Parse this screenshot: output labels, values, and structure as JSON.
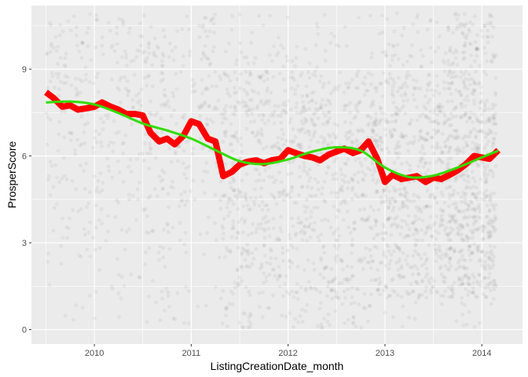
{
  "chart_data": {
    "type": "scatter",
    "xlabel": "ListingCreationDate_month",
    "ylabel": "ProsperScore",
    "xlim": [
      2009.35,
      2014.42
    ],
    "ylim": [
      -0.5,
      11.2
    ],
    "x_ticks": [
      2010,
      2011,
      2012,
      2013,
      2014
    ],
    "x_tick_labels": [
      "2010",
      "2011",
      "2012",
      "2013",
      "2014"
    ],
    "y_ticks": [
      0,
      3,
      6,
      9
    ],
    "y_tick_labels": [
      "0",
      "3",
      "6",
      "9"
    ],
    "grid": true,
    "legend": "none",
    "colors": {
      "panel": "#ebebeb",
      "grid": "#ffffff",
      "points": "#000000",
      "mean_line": "#ff0000",
      "smooth_line": "#33dd00"
    },
    "points_density": {
      "description_scores": [
        1,
        2,
        3,
        4,
        5,
        6,
        7,
        8,
        9,
        10,
        11
      ],
      "bands": [
        {
          "x_start": 2009.5,
          "x_end": 2011.3,
          "density": [
            0.05,
            0.07,
            0.08,
            0.12,
            0.14,
            0.16,
            0.22,
            0.24,
            0.24,
            0.24,
            0.16
          ]
        },
        {
          "x_start": 2011.3,
          "x_end": 2012.95,
          "density": [
            0.2,
            0.3,
            0.32,
            0.35,
            0.38,
            0.35,
            0.45,
            0.5,
            0.32,
            0.12,
            0.06
          ]
        },
        {
          "x_start": 2012.95,
          "x_end": 2013.65,
          "density": [
            0.06,
            0.45,
            0.5,
            0.55,
            0.55,
            0.45,
            0.55,
            0.5,
            0.4,
            0.22,
            0.12
          ]
        },
        {
          "x_start": 2013.65,
          "x_end": 2014.15,
          "density": [
            0.1,
            0.7,
            0.75,
            0.95,
            0.75,
            0.65,
            0.75,
            0.7,
            0.55,
            0.45,
            0.45
          ]
        }
      ]
    },
    "series": [
      {
        "type": "line",
        "x": [
          2009.5,
          2009.58,
          2009.67,
          2009.75,
          2009.83,
          2009.92,
          2010.0,
          2010.08,
          2010.17,
          2010.25,
          2010.33,
          2010.42,
          2010.5,
          2010.58,
          2010.67,
          2010.75,
          2010.83,
          2010.92,
          2011.0,
          2011.08,
          2011.17,
          2011.25,
          2011.33,
          2011.42,
          2011.5,
          2011.58,
          2011.67,
          2011.75,
          2011.83,
          2011.92,
          2012.0,
          2012.08,
          2012.17,
          2012.25,
          2012.33,
          2012.42,
          2012.5,
          2012.58,
          2012.67,
          2012.75,
          2012.83,
          2012.92,
          2013.0,
          2013.08,
          2013.17,
          2013.25,
          2013.33,
          2013.42,
          2013.5,
          2013.58,
          2013.67,
          2013.75,
          2013.83,
          2013.92,
          2014.0,
          2014.08,
          2014.17
        ],
        "y": [
          8.2,
          8.0,
          7.7,
          7.75,
          7.6,
          7.65,
          7.7,
          7.85,
          7.7,
          7.6,
          7.45,
          7.45,
          7.4,
          6.8,
          6.5,
          6.6,
          6.4,
          6.7,
          7.2,
          7.1,
          6.6,
          6.5,
          5.3,
          5.45,
          5.7,
          5.8,
          5.85,
          5.75,
          5.85,
          5.9,
          6.2,
          6.1,
          6.0,
          5.95,
          5.85,
          6.05,
          6.15,
          6.25,
          6.1,
          6.2,
          6.5,
          5.9,
          5.1,
          5.35,
          5.2,
          5.25,
          5.3,
          5.1,
          5.25,
          5.2,
          5.35,
          5.5,
          5.7,
          6.0,
          5.95,
          5.9,
          6.2
        ]
      },
      {
        "type": "smooth",
        "x": [
          2009.5,
          2009.75,
          2010.0,
          2010.25,
          2010.5,
          2010.75,
          2011.0,
          2011.25,
          2011.5,
          2011.75,
          2012.0,
          2012.25,
          2012.5,
          2012.75,
          2013.0,
          2013.25,
          2013.5,
          2013.75,
          2014.0,
          2014.17
        ],
        "y": [
          7.85,
          7.88,
          7.78,
          7.48,
          7.12,
          6.88,
          6.6,
          6.2,
          5.82,
          5.72,
          5.88,
          6.15,
          6.3,
          6.18,
          5.6,
          5.27,
          5.32,
          5.6,
          5.95,
          6.18
        ]
      }
    ]
  }
}
